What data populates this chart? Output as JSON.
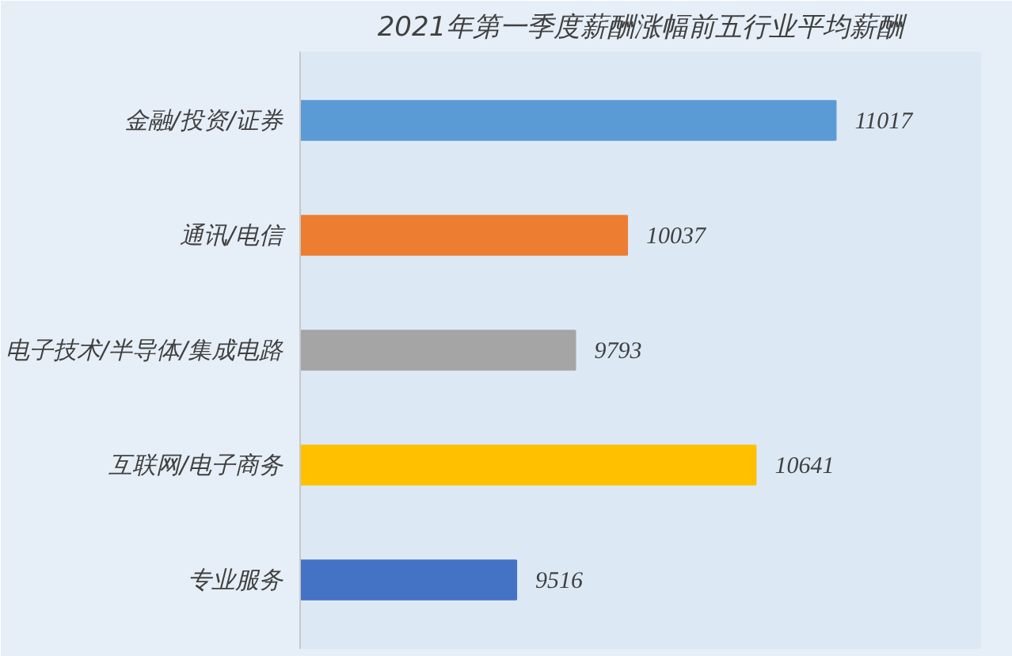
{
  "chart_data": {
    "type": "bar",
    "orientation": "horizontal",
    "title": "2021年第一季度薪酬涨幅前五行业平均薪酬",
    "categories": [
      "金融/投资/证券",
      "通讯/电信",
      "电子技术/半导体/集成电路",
      "互联网/电子商务",
      "专业服务"
    ],
    "values": [
      11017,
      10037,
      9793,
      10641,
      9516
    ],
    "colors": [
      "#5b9bd5",
      "#ed7d31",
      "#a5a5a5",
      "#ffc000",
      "#4472c4"
    ],
    "xlim": [
      8500,
      11700
    ],
    "data_labels": true,
    "tick_labels": "y"
  }
}
